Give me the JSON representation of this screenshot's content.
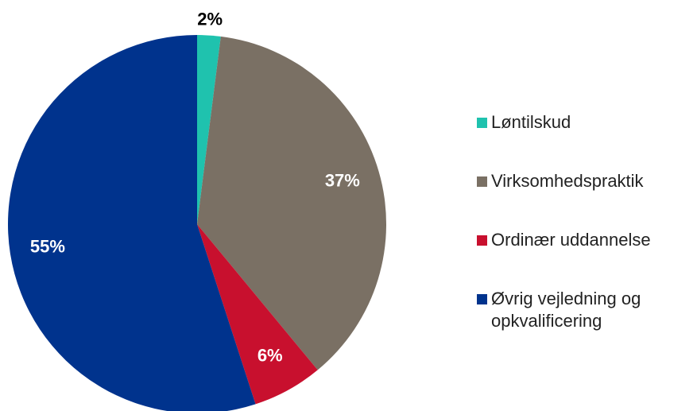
{
  "chart_data": {
    "type": "pie",
    "categories": [
      "Løntilskud",
      "Virksomhedspraktik",
      "Ordinær uddannelse",
      "Øvrig vejledning og opkvalificering"
    ],
    "values": [
      2,
      37,
      6,
      55
    ],
    "value_labels": [
      "2%",
      "37%",
      "6%",
      "55%"
    ],
    "colors": [
      "#1fc2ae",
      "#7a7064",
      "#c8102e",
      "#00338d"
    ],
    "legend": "right"
  }
}
